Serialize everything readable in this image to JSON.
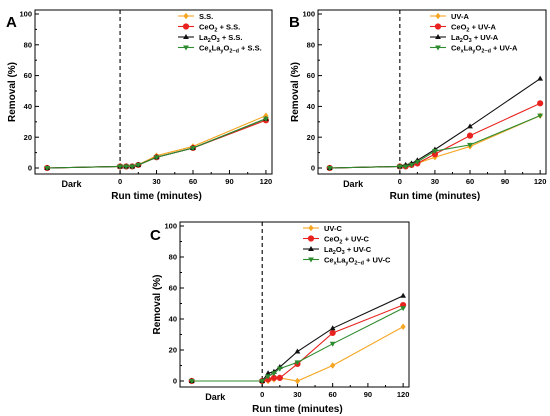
{
  "chart_data": [
    {
      "type": "line",
      "panel": "A",
      "xlabel": "Run time (minutes)",
      "ylabel": "Removal (%)",
      "x_ticks": [
        "0",
        "30",
        "60",
        "90",
        "120"
      ],
      "y_ticks": [
        "0",
        "20",
        "40",
        "60",
        "80",
        "100"
      ],
      "dark_label": "Dark",
      "ylim": [
        0,
        100
      ],
      "x": [
        -60,
        0,
        5,
        10,
        15,
        30,
        60,
        120
      ],
      "series": [
        {
          "name": "S.S.",
          "color": "#f5a623",
          "marker": "diamond",
          "values": [
            0,
            1,
            1,
            1,
            2,
            8,
            14,
            34
          ]
        },
        {
          "name": "CeO2 + S.S.",
          "color": "#e8231f",
          "marker": "circle",
          "values": [
            0,
            1,
            1,
            1,
            2,
            7,
            13,
            31
          ]
        },
        {
          "name": "La2O3 + S.S.",
          "color": "#111111",
          "marker": "triangle-up",
          "values": [
            0,
            1,
            1,
            1,
            2,
            7,
            13,
            32
          ]
        },
        {
          "name": "CexLayO2-d + S.S.",
          "color": "#2e8b2e",
          "marker": "triangle-down",
          "values": [
            0,
            1,
            1,
            1,
            2,
            7,
            13,
            32
          ]
        }
      ]
    },
    {
      "type": "line",
      "panel": "B",
      "xlabel": "Run time (minutes)",
      "ylabel": "Removal (%)",
      "x_ticks": [
        "0",
        "30",
        "60",
        "90",
        "120"
      ],
      "y_ticks": [
        "0",
        "20",
        "40",
        "60",
        "80",
        "100"
      ],
      "dark_label": "Dark",
      "ylim": [
        0,
        100
      ],
      "x": [
        -60,
        0,
        5,
        10,
        15,
        30,
        60,
        120
      ],
      "series": [
        {
          "name": "UV-A",
          "color": "#f5a623",
          "marker": "diamond",
          "values": [
            0,
            1,
            1,
            2,
            3,
            7,
            14,
            34
          ]
        },
        {
          "name": "CeO2 + UV-A",
          "color": "#e8231f",
          "marker": "circle",
          "values": [
            0,
            1,
            1,
            2,
            3,
            9,
            21,
            42
          ]
        },
        {
          "name": "La2O3 + UV-A",
          "color": "#111111",
          "marker": "triangle-up",
          "values": [
            0,
            1,
            2,
            3,
            5,
            12,
            27,
            58
          ]
        },
        {
          "name": "CexLayO2-d + UV-A",
          "color": "#2e8b2e",
          "marker": "triangle-down",
          "values": [
            0,
            1,
            1,
            2,
            4,
            11,
            15,
            34
          ]
        }
      ]
    },
    {
      "type": "line",
      "panel": "C",
      "xlabel": "Run time (minutes)",
      "ylabel": "Removal (%)",
      "x_ticks": [
        "0",
        "30",
        "60",
        "90",
        "120"
      ],
      "y_ticks": [
        "0",
        "20",
        "40",
        "60",
        "80",
        "100"
      ],
      "dark_label": "Dark",
      "ylim": [
        0,
        100
      ],
      "x": [
        -60,
        0,
        5,
        10,
        15,
        30,
        60,
        120
      ],
      "series": [
        {
          "name": "UV-C",
          "color": "#f5a623",
          "marker": "diamond",
          "values": [
            0,
            0,
            0,
            1,
            2,
            0,
            10,
            35
          ]
        },
        {
          "name": "CeO2 + UV-C",
          "color": "#e8231f",
          "marker": "circle",
          "values": [
            0,
            0,
            1,
            2,
            2,
            11,
            31,
            49
          ]
        },
        {
          "name": "La2O3 + UV-C",
          "color": "#111111",
          "marker": "triangle-up",
          "values": [
            0,
            0,
            5,
            6,
            9,
            19,
            34,
            55
          ]
        },
        {
          "name": "CexLayO2-d + UV-C",
          "color": "#2e8b2e",
          "marker": "triangle-down",
          "values": [
            0,
            0,
            3,
            5,
            8,
            12,
            24,
            47
          ]
        }
      ]
    }
  ],
  "legends": [
    [
      {
        "parts": [
          {
            "t": "S.S."
          }
        ]
      },
      {
        "parts": [
          {
            "t": "CeO"
          },
          {
            "t": "2",
            "sub": true
          },
          {
            "t": " + S.S."
          }
        ]
      },
      {
        "parts": [
          {
            "t": "La"
          },
          {
            "t": "2",
            "sub": true
          },
          {
            "t": "O"
          },
          {
            "t": "3",
            "sub": true
          },
          {
            "t": " + S.S."
          }
        ]
      },
      {
        "parts": [
          {
            "t": "Ce"
          },
          {
            "t": "x",
            "sub": true
          },
          {
            "t": "La"
          },
          {
            "t": "y",
            "sub": true
          },
          {
            "t": "O"
          },
          {
            "t": "2−d",
            "sub": true
          },
          {
            "t": " + S.S."
          }
        ]
      }
    ],
    [
      {
        "parts": [
          {
            "t": "UV-A"
          }
        ]
      },
      {
        "parts": [
          {
            "t": "CeO"
          },
          {
            "t": "2",
            "sub": true
          },
          {
            "t": " + UV-A"
          }
        ]
      },
      {
        "parts": [
          {
            "t": "La"
          },
          {
            "t": "2",
            "sub": true
          },
          {
            "t": "O"
          },
          {
            "t": "3",
            "sub": true
          },
          {
            "t": " + UV-A"
          }
        ]
      },
      {
        "parts": [
          {
            "t": "Ce"
          },
          {
            "t": "x",
            "sub": true
          },
          {
            "t": "La"
          },
          {
            "t": "y",
            "sub": true
          },
          {
            "t": "O"
          },
          {
            "t": "2−d",
            "sub": true
          },
          {
            "t": " + UV-A"
          }
        ]
      }
    ],
    [
      {
        "parts": [
          {
            "t": "UV-C"
          }
        ]
      },
      {
        "parts": [
          {
            "t": "CeO"
          },
          {
            "t": "2",
            "sub": true
          },
          {
            "t": " + UV-C"
          }
        ]
      },
      {
        "parts": [
          {
            "t": "La"
          },
          {
            "t": "2",
            "sub": true
          },
          {
            "t": "O"
          },
          {
            "t": "3",
            "sub": true
          },
          {
            "t": " + UV-C"
          }
        ]
      },
      {
        "parts": [
          {
            "t": "Ce"
          },
          {
            "t": "x",
            "sub": true
          },
          {
            "t": "La"
          },
          {
            "t": "y",
            "sub": true
          },
          {
            "t": "O"
          },
          {
            "t": "2−d",
            "sub": true
          },
          {
            "t": " + UV-C"
          }
        ]
      }
    ]
  ]
}
